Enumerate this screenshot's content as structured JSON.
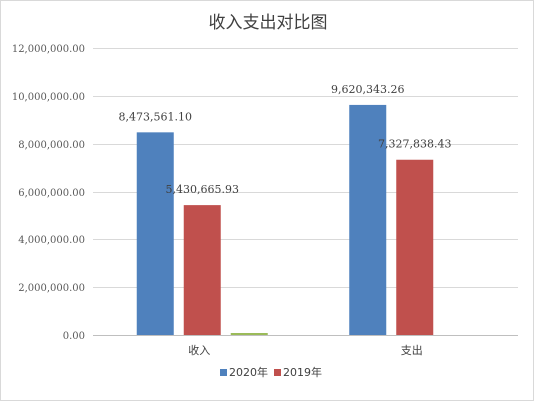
{
  "chart_data": {
    "type": "bar",
    "title": "收入支出对比图",
    "categories": [
      "收入",
      "支出"
    ],
    "series": [
      {
        "name": "2020年",
        "values": [
          8473561.1,
          9620343.26
        ],
        "labels": [
          "8,473,561.10",
          "9,620,343.26"
        ],
        "color": "#4f81bd"
      },
      {
        "name": "2019年",
        "values": [
          5430665.93,
          7327838.43
        ],
        "labels": [
          "5,430,665.93",
          "7,327,838.43"
        ],
        "color": "#c0504d"
      },
      {
        "values": [
          50000,
          0
        ],
        "labels": [
          "",
          ""
        ],
        "color": "#9bbb59"
      }
    ],
    "ylim": [
      0,
      12000000
    ],
    "yticks": [
      "0.00",
      "2,000,000.00",
      "4,000,000.00",
      "6,000,000.00",
      "8,000,000.00",
      "10,000,000.00",
      "12,000,000.00"
    ],
    "grid": true,
    "legend_position": "bottom",
    "xlabel": "",
    "ylabel": ""
  }
}
